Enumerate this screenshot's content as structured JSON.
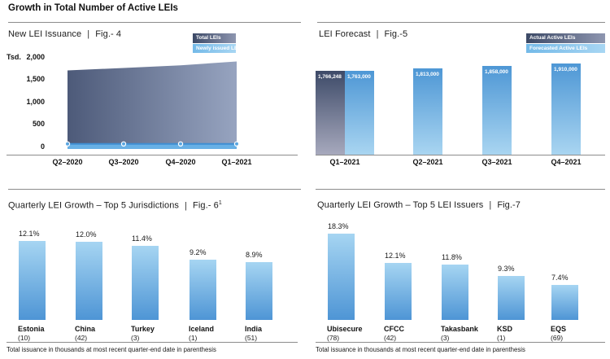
{
  "header": {
    "title": "Growth in Total Number of Active LEIs"
  },
  "ui": {
    "divider": "|"
  },
  "footnote": "Total issuance in thousands at most recent quarter-end date in parenthesis",
  "colors": {
    "area_left": "#4d5a79",
    "area_right": "#97a4c0",
    "issued_band": "#68b0e5",
    "issued_line": "#3f8ed2",
    "marker_fill": "#5aa5e0",
    "actual_bar_top": "#3d4a68",
    "actual_bar_bottom": "#a7a9bd",
    "forecast_bar_top": "#4e97d5",
    "forecast_bar_bottom": "#a9d5f1",
    "growth_bar_top": "#a6d5f2",
    "growth_bar_bottom": "#4e95d5",
    "separator": "#8c8c8c"
  },
  "chart_data": [
    {
      "id": "fig4",
      "type": "area",
      "title": "New LEI Issuance",
      "fig": "Fig.- 4",
      "fig_sup": "",
      "y_unit": "Tsd.",
      "ylim": [
        0,
        2000
      ],
      "y_ticks": [
        "2,000",
        "1,500",
        "1,000",
        "500",
        "0"
      ],
      "categories": [
        "Q2–2020",
        "Q3–2020",
        "Q4–2020",
        "Q1–2021"
      ],
      "series": [
        {
          "name": "Total LEIs",
          "values": [
            1700,
            1755,
            1815,
            1900
          ]
        },
        {
          "name": "Newly issued LEIs",
          "values": [
            40,
            45,
            50,
            60
          ]
        }
      ],
      "legend": [
        "Total LEIs",
        "Newly issued LEIs"
      ],
      "legend_position": "top-right",
      "grid": false
    },
    {
      "id": "fig5",
      "type": "bar",
      "title": "LEI Forecast",
      "fig": "Fig.-5",
      "fig_sup": "",
      "categories": [
        "Q1–2021",
        "Q2–2021",
        "Q3–2021",
        "Q4–2021"
      ],
      "series": [
        {
          "name": "Actual Active LEIs",
          "values": [
            1766248
          ],
          "labels": [
            "1,766,248"
          ],
          "category_index": [
            0
          ]
        },
        {
          "name": "Forecasted Active LEIs",
          "values": [
            1763000,
            1813000,
            1858000,
            1910000
          ],
          "labels": [
            "1,763,000",
            "1,813,000",
            "1,858,000",
            "1,910,000"
          ]
        }
      ],
      "legend": [
        "Actual Active LEIs",
        "Forecasted Active LEIs"
      ],
      "legend_position": "top-right",
      "value_labels_inside_bars": true
    },
    {
      "id": "fig6",
      "type": "bar",
      "title": "Quarterly LEI Growth – Top 5 Jurisdictions",
      "fig": "Fig.- 6",
      "fig_sup": "1",
      "categories": [
        "Estonia",
        "China",
        "Turkey",
        "Iceland",
        "India"
      ],
      "category_sub": [
        "(10)",
        "(42)",
        "(3)",
        "(1)",
        "(51)"
      ],
      "values": [
        12.1,
        12.0,
        11.4,
        9.2,
        8.9
      ],
      "value_labels": [
        "12.1%",
        "12.0%",
        "11.4%",
        "9.2%",
        "8.9%"
      ]
    },
    {
      "id": "fig7",
      "type": "bar",
      "title": "Quarterly LEI Growth – Top 5 LEI Issuers",
      "fig": "Fig.-7",
      "fig_sup": "",
      "categories": [
        "Ubisecure",
        "CFCC",
        "Takasbank",
        "KSD",
        "EQS"
      ],
      "category_sub": [
        "(78)",
        "(42)",
        "(3)",
        "(1)",
        "(69)"
      ],
      "values": [
        18.3,
        12.1,
        11.8,
        9.3,
        7.4
      ],
      "value_labels": [
        "18.3%",
        "12.1%",
        "11.8%",
        "9.3%",
        "7.4%"
      ]
    }
  ]
}
